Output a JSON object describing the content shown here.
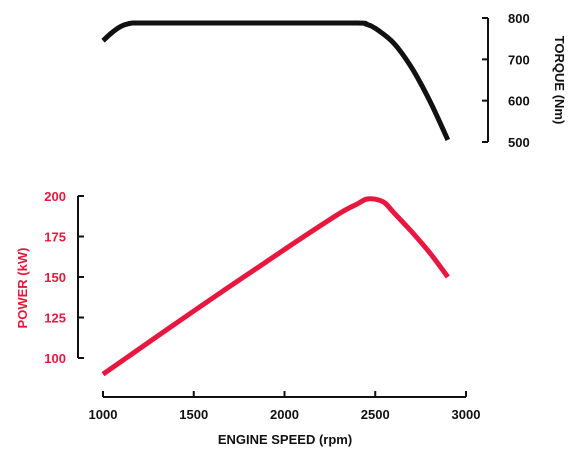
{
  "chart_data": [
    {
      "type": "line",
      "ylabel": "TORQUE (Nm)",
      "ylim": [
        500,
        800
      ],
      "y_ticks": [
        "800",
        "700",
        "600",
        "500"
      ],
      "y_tick_values": [
        800,
        700,
        600,
        500
      ],
      "xlim": [
        1000,
        3000
      ],
      "color": "#111111",
      "series": [
        {
          "x": [
            1000,
            1050,
            1100,
            1150,
            1200,
            1500,
            2000,
            2400,
            2450,
            2500,
            2600,
            2700,
            2800,
            2900
          ],
          "values": [
            745,
            765,
            780,
            787,
            788,
            788,
            788,
            788,
            785,
            775,
            740,
            680,
            600,
            505
          ]
        }
      ]
    },
    {
      "type": "line",
      "xlabel": "ENGINE SPEED (rpm)",
      "ylabel": "POWER (kW)",
      "xlim": [
        1000,
        3000
      ],
      "ylim": [
        90,
        200
      ],
      "x_ticks": [
        "1000",
        "1500",
        "2000",
        "2500",
        "3000"
      ],
      "x_tick_values": [
        1000,
        1500,
        2000,
        2500,
        3000
      ],
      "y_ticks": [
        "200",
        "175",
        "150",
        "125",
        "100"
      ],
      "y_tick_values": [
        200,
        175,
        150,
        125,
        100
      ],
      "color": "#e8173f",
      "series": [
        {
          "x": [
            1000,
            1500,
            2000,
            2300,
            2400,
            2450,
            2500,
            2550,
            2600,
            2700,
            2800,
            2900
          ],
          "values": [
            90,
            129,
            167,
            189,
            195,
            198,
            198,
            196,
            190,
            178,
            165,
            150
          ]
        }
      ]
    }
  ]
}
